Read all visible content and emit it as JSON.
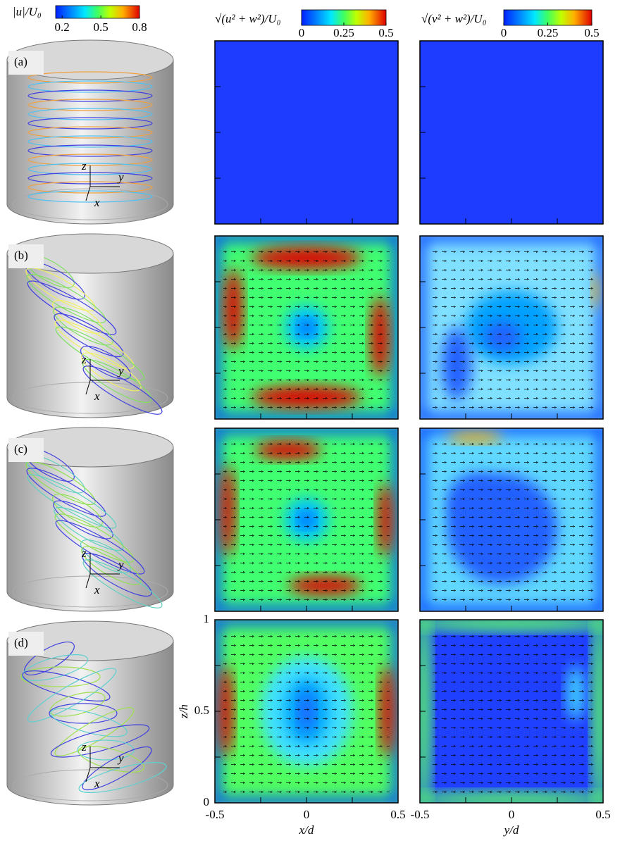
{
  "colorbars": [
    {
      "label": "|u|/U₀",
      "lim": [
        0.15,
        0.8
      ],
      "ticks": [
        0.2,
        0.5,
        0.8
      ]
    },
    {
      "label": "√(u² + w²)/U₀",
      "lim": [
        0,
        0.5
      ],
      "ticks": [
        0,
        0.25,
        0.5
      ]
    },
    {
      "label": "√(v² + w²)/U₀",
      "lim": [
        0,
        0.5
      ],
      "ticks": [
        0,
        0.25,
        0.5
      ]
    }
  ],
  "panels": [
    "(a)",
    "(b)",
    "(c)",
    "(d)"
  ],
  "triad": {
    "z": "z",
    "y": "y",
    "x": "x"
  },
  "axes": {
    "xlabel_mid": "x/d",
    "xlabel_right": "y/d",
    "ylabel": "z/h",
    "xlim": [
      -0.5,
      0.5
    ],
    "xticks": [
      -0.5,
      0,
      0.5
    ],
    "ylim": [
      0,
      1
    ],
    "yticks": [
      0,
      0.5,
      1
    ]
  }
}
